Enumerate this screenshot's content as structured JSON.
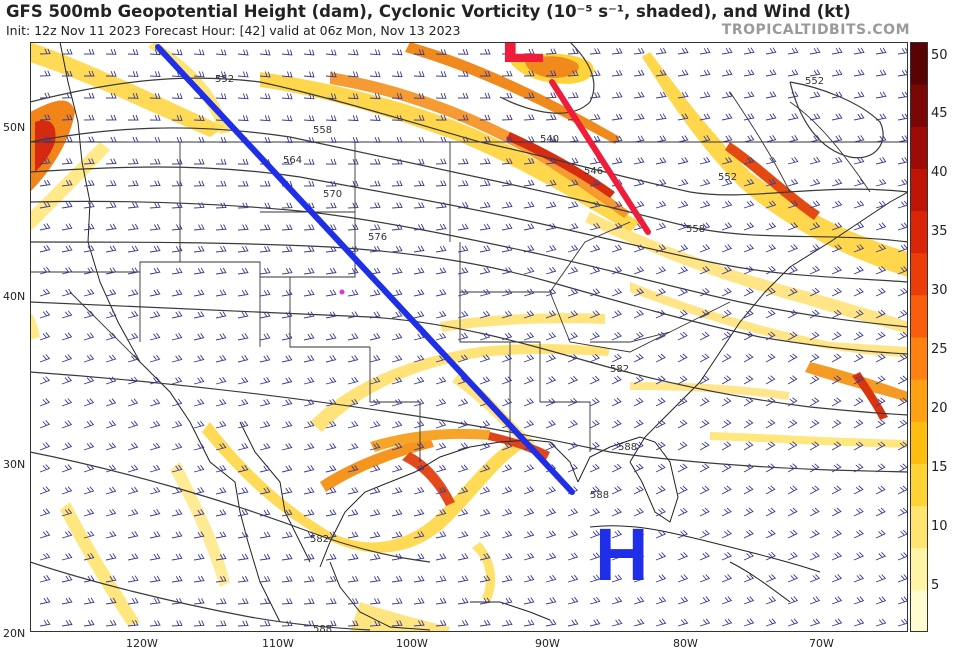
{
  "header": {
    "title": "GFS 500mb Geopotential Height (dam), Cyclonic Vorticity (10⁻⁵ s⁻¹, shaded), and Wind (kt)",
    "subtitle": "Init: 12z Nov 11 2023   Forecast Hour: [42]   valid at 06z Mon, Nov 13 2023",
    "brand": "TROPICALTIDBITS.COM"
  },
  "map": {
    "lat_labels": [
      "50N",
      "40N",
      "30N",
      "20N"
    ],
    "lon_labels": [
      "120W",
      "110W",
      "100W",
      "90W",
      "80W",
      "70W"
    ],
    "contour_labels": [
      "552",
      "558",
      "564",
      "570",
      "576",
      "582",
      "588",
      "540",
      "546",
      "552",
      "558",
      "582",
      "588",
      "588",
      "552"
    ],
    "annotations": {
      "low": "L",
      "high": "H"
    },
    "colors": {
      "trough_line": "#1f2ee8",
      "ridge_line": "#ef1c3a",
      "high_letter": "#1f2ee8",
      "low_letter": "#ef1c3a",
      "barbs": "#3c3a8c",
      "contours": "#3a3a3a"
    }
  },
  "colorbar": {
    "ticks": [
      "50",
      "45",
      "40",
      "35",
      "30",
      "25",
      "20",
      "15",
      "10",
      "5"
    ],
    "colors": [
      "#fffdd0",
      "#fff3a6",
      "#ffe470",
      "#ffd236",
      "#ffbd12",
      "#ffa112",
      "#ff8112",
      "#fa5e0c",
      "#ec3d08",
      "#d92407",
      "#bd1406",
      "#9c0b06",
      "#7a0606",
      "#5a0304"
    ]
  }
}
